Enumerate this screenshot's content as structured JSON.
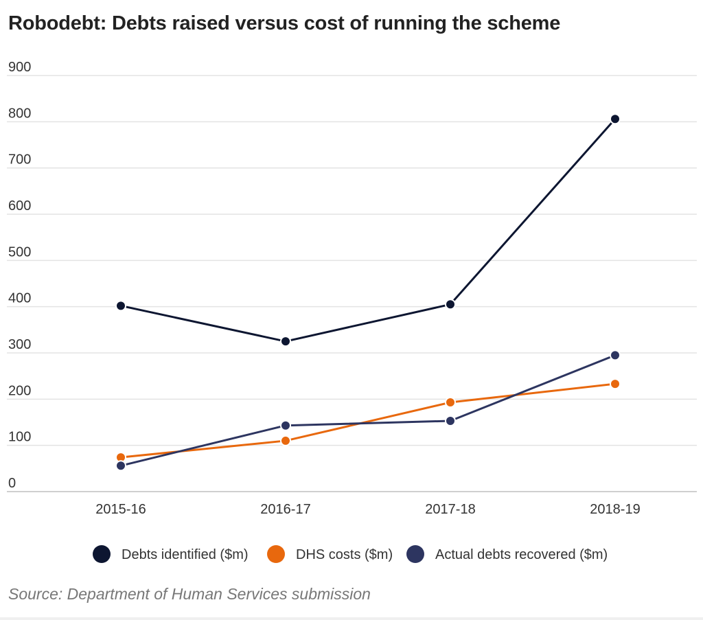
{
  "chart_data": {
    "type": "line",
    "title": "Robodebt: Debts raised versus cost of running the scheme",
    "source": "Source: Department of Human Services submission",
    "categories": [
      "2015-16",
      "2016-17",
      "2017-18",
      "2018-19"
    ],
    "y_ticks": [
      "0",
      "100",
      "200",
      "300",
      "400",
      "500",
      "600",
      "700",
      "800",
      "900"
    ],
    "ylim": [
      0,
      900
    ],
    "grid": true,
    "legend_position": "bottom-center",
    "series": [
      {
        "name": "Debts identified ($m)",
        "color": "#0d1631",
        "values": [
          402,
          325,
          405,
          806
        ]
      },
      {
        "name": "DHS costs ($m)",
        "color": "#e8680d",
        "values": [
          74,
          110,
          193,
          233
        ]
      },
      {
        "name": "Actual debts recovered ($m)",
        "color": "#2d3560",
        "values": [
          56,
          143,
          153,
          295
        ]
      }
    ]
  }
}
